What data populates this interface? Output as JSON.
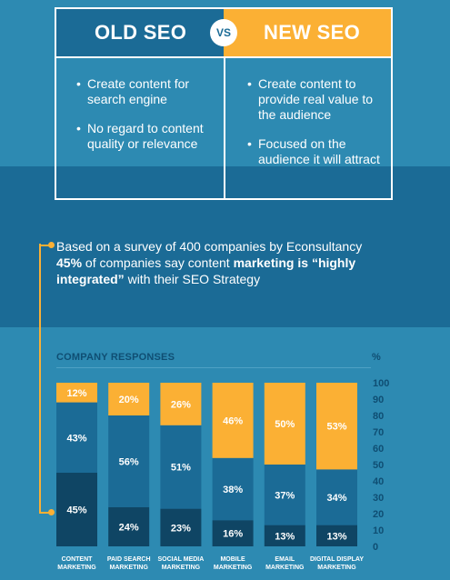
{
  "comparison": {
    "old_title": "OLD SEO",
    "vs": "VS",
    "new_title": "NEW SEO",
    "old_points": [
      "Create content for search engine",
      "No regard to content quality or relevance"
    ],
    "new_points": [
      "Create content to provide real value to the audience",
      "Focused on the audience it will attract"
    ]
  },
  "survey": {
    "line1": "Based on a survey of 400 companies by Econsultancy",
    "pct": "45%",
    "mid1": " of companies say content ",
    "bold2": "marketing is “highly integrated”",
    "end": " with their SEO Strategy"
  },
  "chart_header": {
    "title": "COMPANY RESPONSES",
    "unit": "%"
  },
  "colors": {
    "dark": "#0f4564",
    "mid": "#1b6b96",
    "yellow": "#fbb034"
  },
  "chart_data": {
    "type": "bar",
    "stacked": true,
    "categories": [
      [
        "CONTENT",
        "MARKETING"
      ],
      [
        "PAID SEARCH",
        "MARKETING"
      ],
      [
        "SOCIAL MEDIA",
        "MARKETING"
      ],
      [
        "MOBILE",
        "MARKETING"
      ],
      [
        "EMAIL",
        "MARKETING"
      ],
      [
        "DIGITAL DISPLAY",
        "MARKETING"
      ]
    ],
    "series": [
      {
        "values": [
          45,
          24,
          23,
          16,
          13,
          13
        ],
        "color": "#0f4564"
      },
      {
        "values": [
          43,
          56,
          51,
          38,
          37,
          34
        ],
        "color": "#1b6b96"
      },
      {
        "values": [
          12,
          20,
          26,
          46,
          50,
          53
        ],
        "color": "#fbb034"
      }
    ],
    "ylim": [
      0,
      100
    ],
    "yticks": [
      0,
      10,
      20,
      30,
      40,
      50,
      60,
      70,
      80,
      90,
      100
    ],
    "ylabel": "%",
    "title": "COMPANY RESPONSES"
  }
}
